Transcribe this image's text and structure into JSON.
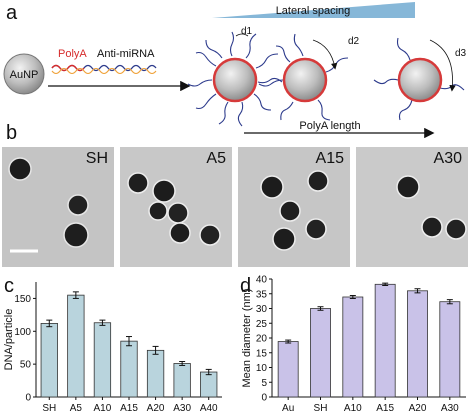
{
  "panel_a": {
    "letter": "a",
    "aunp_label": "AuNP",
    "polya_label": "PolyA",
    "antimirna_label": "Anti-miRNA",
    "lateral_spacing_label": "Lateral spacing",
    "polya_length_label": "PolyA length",
    "d_labels": [
      "d1",
      "d2",
      "d3"
    ],
    "colors": {
      "polya": "#d62b2b",
      "antimirna": "#2d3b8c",
      "wedge": "#86b7d8",
      "np_ring": "#d63a3a"
    }
  },
  "panel_b": {
    "letter": "b",
    "images": [
      {
        "label": "SH",
        "icon": "tem-micrograph"
      },
      {
        "label": "A5",
        "icon": "tem-micrograph"
      },
      {
        "label": "A15",
        "icon": "tem-micrograph"
      },
      {
        "label": "A30",
        "icon": "tem-micrograph"
      }
    ]
  },
  "chart_data": [
    {
      "panel": "c",
      "type": "bar",
      "categories": [
        "SH",
        "A5",
        "A10",
        "A15",
        "A20",
        "A30",
        "A40"
      ],
      "values": [
        112,
        155,
        113,
        85,
        71,
        51,
        38
      ],
      "errors": [
        5,
        5,
        4,
        7,
        6,
        3,
        4
      ],
      "ylabel": "DNA/particle",
      "xlabel": "",
      "ylim": [
        0,
        175
      ],
      "yticks": [
        0,
        50,
        100,
        150
      ],
      "color": "#b9d4dd"
    },
    {
      "panel": "d",
      "type": "bar",
      "categories": [
        "Au",
        "SH",
        "A10",
        "A15",
        "A20",
        "A30"
      ],
      "values": [
        18.8,
        30,
        33.9,
        38.2,
        36,
        32.3
      ],
      "errors": [
        0.5,
        0.6,
        0.5,
        0.4,
        0.7,
        0.7
      ],
      "ylabel": "Mean diameter (nm)",
      "xlabel": "",
      "ylim": [
        0,
        40
      ],
      "yticks": [
        0,
        5,
        10,
        15,
        20,
        25,
        30,
        35,
        40
      ],
      "color": "#c9c2e8"
    }
  ]
}
